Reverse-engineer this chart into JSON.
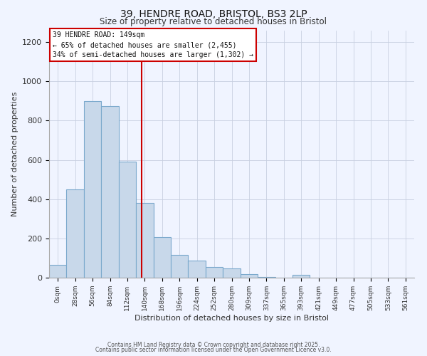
{
  "title": "39, HENDRE ROAD, BRISTOL, BS3 2LP",
  "subtitle": "Size of property relative to detached houses in Bristol",
  "xlabel": "Distribution of detached houses by size in Bristol",
  "ylabel": "Number of detached properties",
  "bar_labels": [
    "0sqm",
    "28sqm",
    "56sqm",
    "84sqm",
    "112sqm",
    "140sqm",
    "168sqm",
    "196sqm",
    "224sqm",
    "252sqm",
    "280sqm",
    "309sqm",
    "337sqm",
    "365sqm",
    "393sqm",
    "421sqm",
    "449sqm",
    "477sqm",
    "505sqm",
    "533sqm",
    "561sqm"
  ],
  "bar_values": [
    65,
    450,
    900,
    875,
    590,
    380,
    205,
    115,
    88,
    55,
    48,
    18,
    2,
    0,
    15,
    0,
    0,
    0,
    0,
    0,
    0
  ],
  "bar_color": "#c8d8ea",
  "bar_edge_color": "#7aa8cc",
  "vline_x": 5.32,
  "vline_color": "#cc0000",
  "annotation_title": "39 HENDRE ROAD: 149sqm",
  "annotation_line2": "← 65% of detached houses are smaller (2,455)",
  "annotation_line3": "34% of semi-detached houses are larger (1,302) →",
  "annotation_box_color": "#cc0000",
  "ylim": [
    0,
    1260
  ],
  "yticks": [
    0,
    200,
    400,
    600,
    800,
    1000,
    1200
  ],
  "footer1": "Contains HM Land Registry data © Crown copyright and database right 2025.",
  "footer2": "Contains public sector information licensed under the Open Government Licence v3.0.",
  "bg_color": "#f0f4ff",
  "grid_color": "#c8d0e0"
}
